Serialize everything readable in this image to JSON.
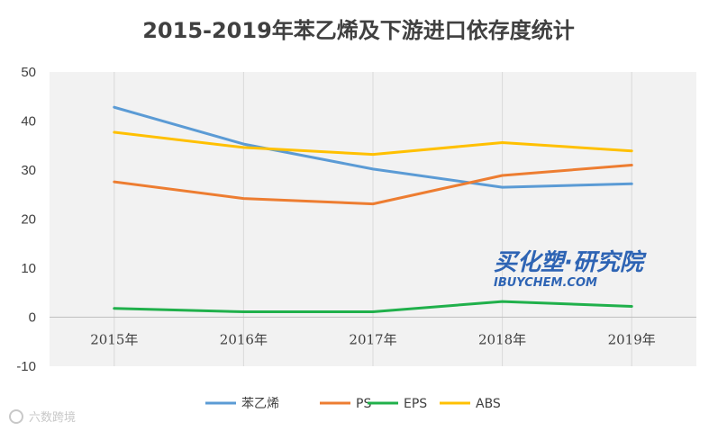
{
  "chart_data": {
    "type": "line",
    "title": "2015-2019年苯乙烯及下游进口依存度统计",
    "categories": [
      "2015年",
      "2016年",
      "2017年",
      "2018年",
      "2019年"
    ],
    "ylim": [
      -10,
      50
    ],
    "yticks": [
      -10,
      0,
      10,
      20,
      30,
      40,
      50
    ],
    "grid": "vertical",
    "legend": "bottom",
    "series": [
      {
        "name": "苯乙烯",
        "color": "#5b9bd5",
        "values": [
          42.8,
          35.3,
          30.2,
          26.5,
          27.2
        ]
      },
      {
        "name": "PS",
        "color": "#ed7d31",
        "values": [
          27.6,
          24.2,
          23.1,
          28.9,
          31.0
        ]
      },
      {
        "name": "EPS",
        "color": "#20b04b",
        "values": [
          1.8,
          1.1,
          1.1,
          3.2,
          2.2
        ]
      },
      {
        "name": "ABS",
        "color": "#ffc000",
        "values": [
          37.7,
          34.6,
          33.2,
          35.6,
          33.9
        ]
      }
    ]
  },
  "watermark": {
    "main": "买化塑·研究院",
    "sub": "IBUYCHEM.COM"
  },
  "source_label": "六数跨境"
}
